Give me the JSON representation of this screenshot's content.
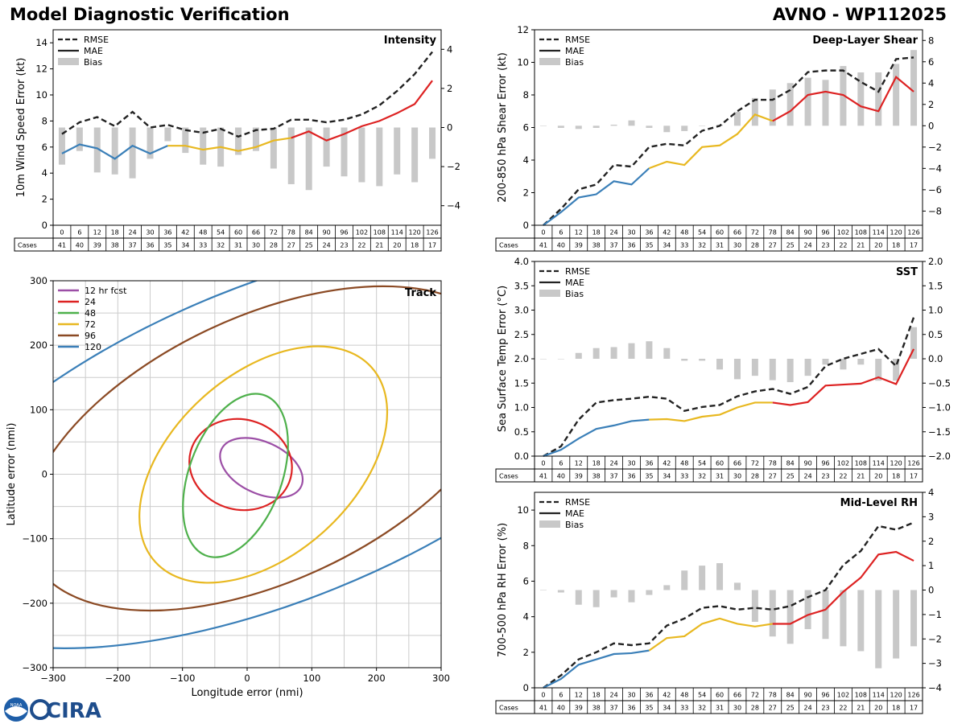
{
  "header": {
    "title": "Model Diagnostic Verification",
    "model_storm": "AVNO - WP112025"
  },
  "colors": {
    "rmse": "#222222",
    "bias": "#c8c8c8",
    "mae_early": "#3a7fb8",
    "mae_mid": "#e8b820",
    "mae_late": "#dd2222",
    "grid": "#cccccc"
  },
  "table": {
    "cases_label": "Cases",
    "hours": [
      "0",
      "6",
      "12",
      "18",
      "24",
      "30",
      "36",
      "42",
      "48",
      "54",
      "60",
      "66",
      "72",
      "78",
      "84",
      "90",
      "96",
      "102",
      "108",
      "114",
      "120",
      "126"
    ],
    "cases": [
      "41",
      "40",
      "39",
      "38",
      "37",
      "36",
      "35",
      "34",
      "33",
      "32",
      "31",
      "30",
      "28",
      "27",
      "25",
      "24",
      "23",
      "22",
      "21",
      "20",
      "18",
      "17"
    ]
  },
  "legend": {
    "rmse": "RMSE",
    "mae": "MAE",
    "bias": "Bias"
  },
  "chart_data": [
    {
      "id": "intensity",
      "type": "line",
      "title": "Intensity",
      "ylabel": "10m Wind Speed Error (kt)",
      "ylim": [
        0,
        15
      ],
      "yticks": [
        "0",
        "2",
        "4",
        "6",
        "8",
        "10",
        "12",
        "14"
      ],
      "y2lim": [
        -5,
        5
      ],
      "y2ticks": [
        "−4",
        "−2",
        "0",
        "2",
        "4"
      ],
      "x": [
        0,
        6,
        12,
        18,
        24,
        30,
        36,
        42,
        48,
        54,
        60,
        66,
        72,
        78,
        84,
        90,
        96,
        102,
        108,
        114,
        120,
        126
      ],
      "rmse": [
        7.0,
        7.9,
        8.3,
        7.6,
        8.7,
        7.5,
        7.7,
        7.3,
        7.1,
        7.4,
        6.8,
        7.3,
        7.4,
        8.1,
        8.1,
        7.9,
        8.1,
        8.5,
        9.2,
        10.3,
        11.6,
        13.3
      ],
      "mae": [
        5.5,
        6.2,
        5.9,
        5.1,
        6.1,
        5.5,
        6.1,
        6.1,
        5.8,
        6.0,
        5.7,
        6.0,
        6.5,
        6.7,
        7.2,
        6.5,
        7.0,
        7.6,
        8.0,
        8.6,
        9.3,
        11.1
      ],
      "bias": [
        -1.9,
        -1.2,
        -2.3,
        -2.4,
        -2.6,
        -1.6,
        -0.7,
        -1.3,
        -1.9,
        -2.0,
        -1.4,
        -1.2,
        -2.1,
        -2.9,
        -3.2,
        -2.0,
        -2.5,
        -2.8,
        -3.0,
        -2.4,
        -2.8,
        -1.6
      ]
    },
    {
      "id": "shear",
      "type": "line",
      "title": "Deep-Layer Shear",
      "ylabel": "200-850 hPa Shear Error (kt)",
      "ylim": [
        0,
        12
      ],
      "yticks": [
        "0",
        "2",
        "4",
        "6",
        "8",
        "10",
        "12"
      ],
      "y2lim": [
        -9.33,
        9.0
      ],
      "y2ticks": [
        "−8",
        "−6",
        "−4",
        "−2",
        "0",
        "2",
        "4",
        "6",
        "8"
      ],
      "x": [
        0,
        6,
        12,
        18,
        24,
        30,
        36,
        42,
        48,
        54,
        60,
        66,
        72,
        78,
        84,
        90,
        96,
        102,
        108,
        114,
        120,
        126
      ],
      "rmse": [
        0.0,
        1.0,
        2.2,
        2.5,
        3.7,
        3.6,
        4.8,
        5.0,
        4.9,
        5.8,
        6.1,
        7.0,
        7.7,
        7.7,
        8.3,
        9.4,
        9.5,
        9.5,
        8.8,
        8.2,
        10.2,
        10.3
      ],
      "mae": [
        0.0,
        0.8,
        1.7,
        1.9,
        2.7,
        2.5,
        3.5,
        3.9,
        3.7,
        4.8,
        4.9,
        5.6,
        6.8,
        6.4,
        7.0,
        8.0,
        8.2,
        8.0,
        7.3,
        7.0,
        9.1,
        8.2
      ],
      "bias": [
        0.0,
        -0.2,
        -0.3,
        -0.2,
        0.1,
        0.5,
        -0.2,
        -0.6,
        -0.5,
        0.0,
        0.1,
        1.3,
        2.6,
        3.4,
        4.0,
        4.5,
        4.3,
        5.6,
        5.0,
        5.0,
        5.8,
        7.1
      ]
    },
    {
      "id": "sst",
      "type": "line",
      "title": "SST",
      "ylabel": "Sea Surface Temp Error (°C)",
      "ylim": [
        0,
        4
      ],
      "yticks": [
        "0.0",
        "0.5",
        "1.0",
        "1.5",
        "2.0",
        "2.5",
        "3.0",
        "3.5",
        "4.0"
      ],
      "y2lim": [
        -2,
        2
      ],
      "y2ticks": [
        "−2.0",
        "−1.5",
        "−1.0",
        "−0.5",
        "0.0",
        "0.5",
        "1.0",
        "1.5",
        "2.0"
      ],
      "x": [
        0,
        6,
        12,
        18,
        24,
        30,
        36,
        42,
        48,
        54,
        60,
        66,
        72,
        78,
        84,
        90,
        96,
        102,
        108,
        114,
        120,
        126
      ],
      "rmse": [
        0.0,
        0.2,
        0.75,
        1.1,
        1.15,
        1.18,
        1.22,
        1.18,
        0.93,
        1.01,
        1.05,
        1.23,
        1.33,
        1.38,
        1.28,
        1.42,
        1.85,
        2.0,
        2.1,
        2.2,
        1.85,
        2.85
      ],
      "mae": [
        0.0,
        0.13,
        0.36,
        0.56,
        0.63,
        0.72,
        0.75,
        0.76,
        0.72,
        0.81,
        0.85,
        1.0,
        1.1,
        1.1,
        1.05,
        1.11,
        1.45,
        1.47,
        1.49,
        1.62,
        1.48,
        2.2
      ],
      "bias": [
        0.0,
        0.0,
        0.12,
        0.22,
        0.24,
        0.32,
        0.36,
        0.22,
        -0.04,
        -0.04,
        -0.22,
        -0.42,
        -0.35,
        -0.44,
        -0.48,
        -0.35,
        -0.12,
        -0.22,
        -0.12,
        -0.45,
        -0.45,
        0.65
      ]
    },
    {
      "id": "rh",
      "type": "line",
      "title": "Mid-Level RH",
      "ylabel": "700-500 hPa RH Error (%)",
      "ylim": [
        0,
        11
      ],
      "yticks": [
        "0",
        "2",
        "4",
        "6",
        "8",
        "10"
      ],
      "y2lim": [
        -4,
        4
      ],
      "y2ticks": [
        "−4",
        "−3",
        "−2",
        "−1",
        "0",
        "1",
        "2",
        "3",
        "4"
      ],
      "x": [
        0,
        6,
        12,
        18,
        24,
        30,
        36,
        42,
        48,
        54,
        60,
        66,
        72,
        78,
        84,
        90,
        96,
        102,
        108,
        114,
        120,
        126
      ],
      "rmse": [
        0.0,
        0.7,
        1.6,
        2.0,
        2.5,
        2.4,
        2.5,
        3.5,
        3.9,
        4.5,
        4.6,
        4.4,
        4.5,
        4.4,
        4.6,
        5.1,
        5.5,
        6.9,
        7.7,
        9.1,
        8.9,
        9.3
      ],
      "mae": [
        0.0,
        0.5,
        1.3,
        1.6,
        1.9,
        1.95,
        2.1,
        2.8,
        2.9,
        3.6,
        3.9,
        3.6,
        3.45,
        3.6,
        3.6,
        4.1,
        4.4,
        5.4,
        6.2,
        7.5,
        7.65,
        7.15
      ],
      "bias": [
        0.0,
        -0.1,
        -0.6,
        -0.7,
        -0.3,
        -0.5,
        -0.2,
        0.2,
        0.8,
        1.0,
        1.1,
        0.3,
        -1.3,
        -1.9,
        -2.2,
        -1.6,
        -2.0,
        -2.3,
        -2.5,
        -3.2,
        -2.8,
        -2.3
      ]
    },
    {
      "id": "track",
      "type": "ellipse",
      "title": "Track",
      "xlabel": "Longitude error (nmi)",
      "ylabel": "Latitude error (nmi)",
      "xlim": [
        -300,
        300
      ],
      "ylim": [
        -300,
        300
      ],
      "xticks": [
        "−300",
        "−200",
        "−100",
        "0",
        "100",
        "200",
        "300"
      ],
      "yticks": [
        "−300",
        "−200",
        "−100",
        "0",
        "100",
        "200",
        "300"
      ],
      "legend_title": "12 hr fcst",
      "ellipses": [
        {
          "label": "12 hr fcst",
          "color": "#9c4fa6",
          "cx": 22,
          "cy": 10,
          "rx": 68,
          "ry": 40,
          "rot": 25
        },
        {
          "label": "24",
          "color": "#dd2222",
          "cx": -10,
          "cy": 15,
          "rx": 80,
          "ry": 70,
          "rot": 15
        },
        {
          "label": "48",
          "color": "#4eb04b",
          "cx": -18,
          "cy": -2,
          "rx": 132,
          "ry": 72,
          "rot": -70
        },
        {
          "label": "72",
          "color": "#e8b820",
          "cx": 25,
          "cy": 15,
          "rx": 225,
          "ry": 140,
          "rot": -42
        },
        {
          "label": "96",
          "color": "#8b4a24",
          "cx": 30,
          "cy": 40,
          "rx": 400,
          "ry": 205,
          "rot": -25
        },
        {
          "label": "120",
          "color": "#3a7fb8",
          "cx": 45,
          "cy": 50,
          "rx": 600,
          "ry": 245,
          "rot": -22
        }
      ]
    }
  ],
  "logos": {
    "noaa": "NOAA",
    "cira": "CIRA"
  }
}
